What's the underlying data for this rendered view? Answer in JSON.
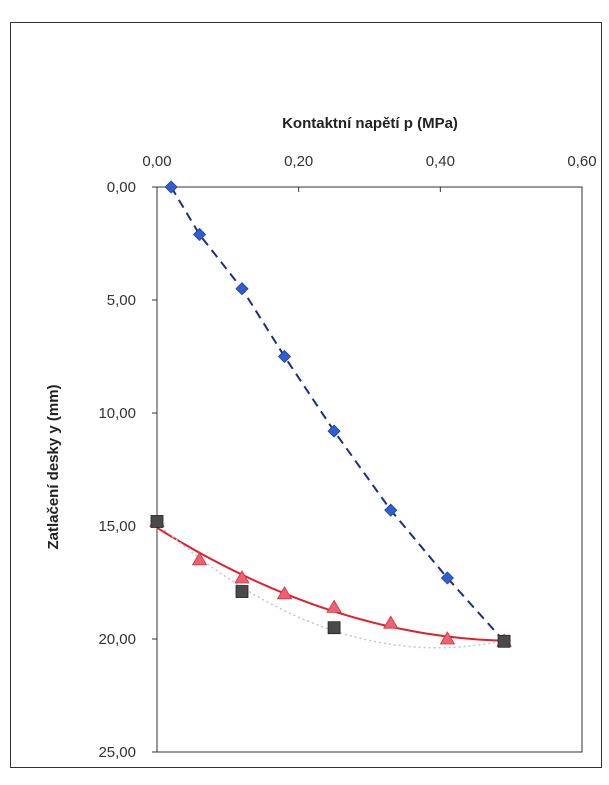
{
  "chart_data": {
    "type": "scatter",
    "title": "",
    "xlabel": "Kontaktní napětí p (MPa)",
    "ylabel": "Zatlačení desky y (mm)",
    "xlim": [
      0,
      0.6
    ],
    "ylim": [
      0,
      25
    ],
    "y_inverted": true,
    "x_axis_position": "top",
    "x_ticks": [
      "0,00",
      "0,20",
      "0,40",
      "0,60"
    ],
    "y_ticks": [
      "0,00",
      "5,00",
      "10,00",
      "15,00",
      "20,00",
      "25,00"
    ],
    "grid": false,
    "legend": "none",
    "series": [
      {
        "marker": "diamond",
        "color": "#2f5fd0",
        "line": "dashed",
        "line_color": "#1f2d8a",
        "x": [
          0.02,
          0.06,
          0.12,
          0.18,
          0.25,
          0.33,
          0.41,
          0.49
        ],
        "y": [
          0.0,
          2.1,
          4.5,
          7.5,
          10.8,
          14.3,
          17.3,
          20.1
        ]
      },
      {
        "marker": "triangle",
        "color": "#f06070",
        "line": "solid",
        "line_color": "#e0202a",
        "x": [
          0.0,
          0.06,
          0.12,
          0.18,
          0.25,
          0.33,
          0.41,
          0.49
        ],
        "y": [
          14.8,
          16.5,
          17.3,
          18.0,
          18.6,
          19.3,
          20.0,
          20.1
        ]
      },
      {
        "marker": "square",
        "color": "#4a4a4a",
        "line": "dotted",
        "line_color": "#b8c8e0",
        "x": [
          0.0,
          0.12,
          0.25,
          0.49
        ],
        "y": [
          14.8,
          17.9,
          19.5,
          20.1
        ]
      }
    ]
  }
}
